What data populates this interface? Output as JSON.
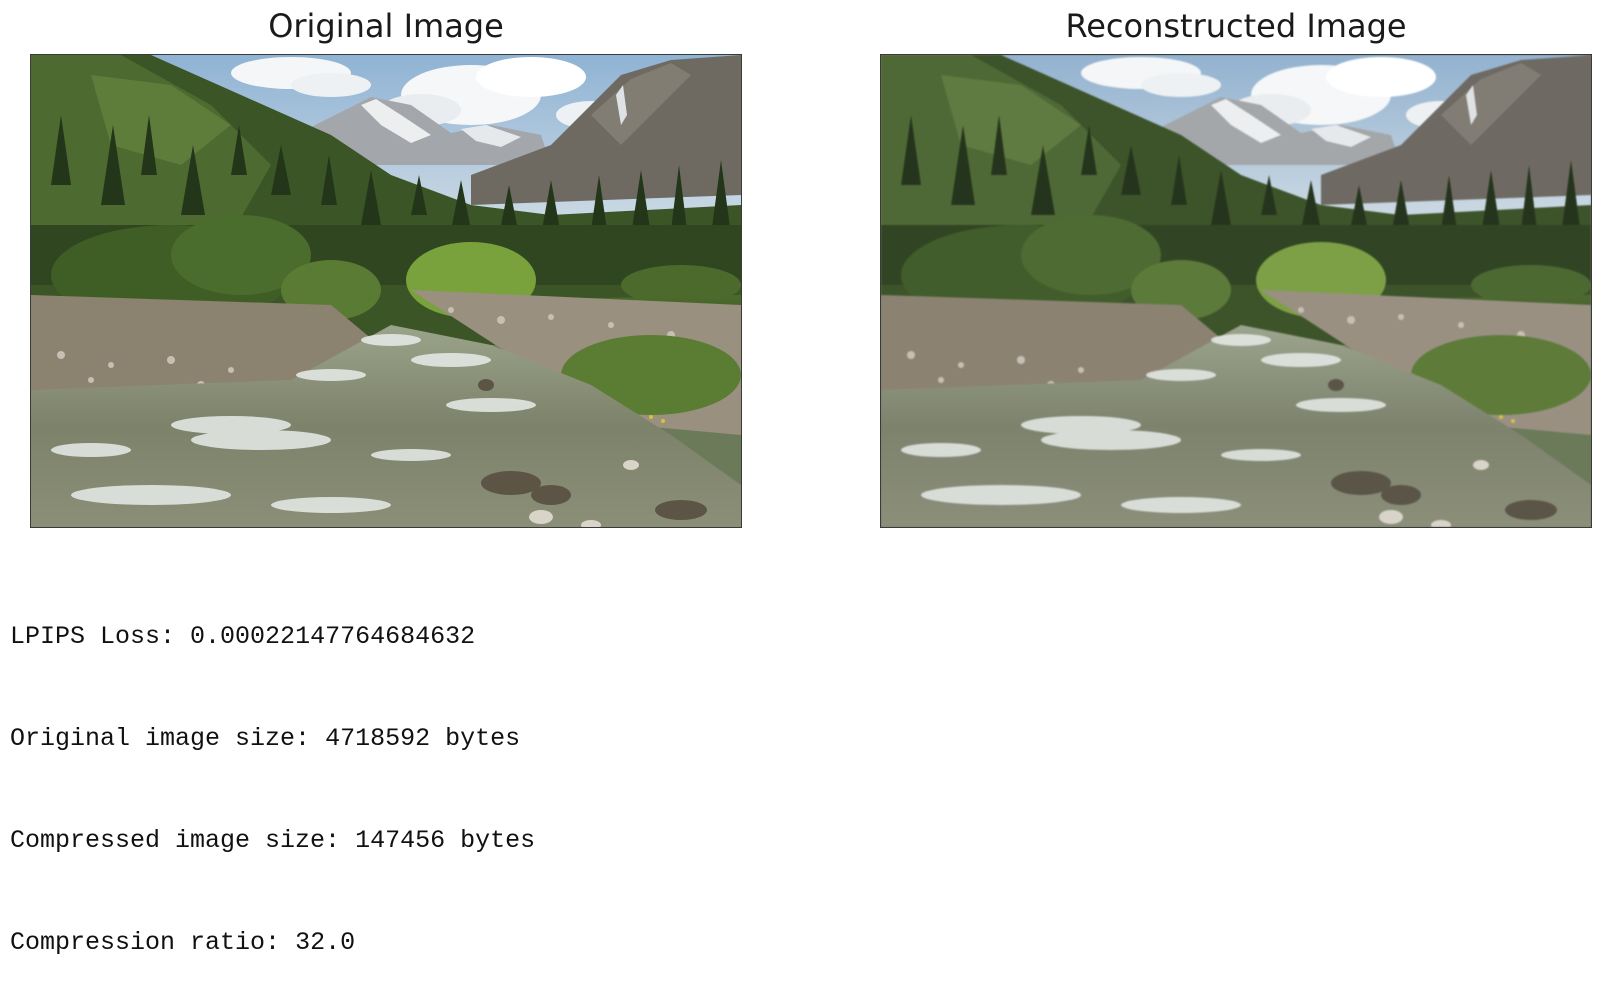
{
  "panels": [
    {
      "title": "Original Image",
      "image": "mountain-stream-landscape"
    },
    {
      "title": "Reconstructed Image",
      "image": "mountain-stream-landscape-reconstructed"
    }
  ],
  "output": {
    "lpips_label": "LPIPS Loss:",
    "lpips_value": "0.00022147764684632",
    "original_size_label": "Original image size:",
    "original_size_value": "4718592 bytes",
    "compressed_size_label": "Compressed image size:",
    "compressed_size_value": "147456 bytes",
    "ratio_label": "Compression ratio:",
    "ratio_value": "32.0"
  }
}
